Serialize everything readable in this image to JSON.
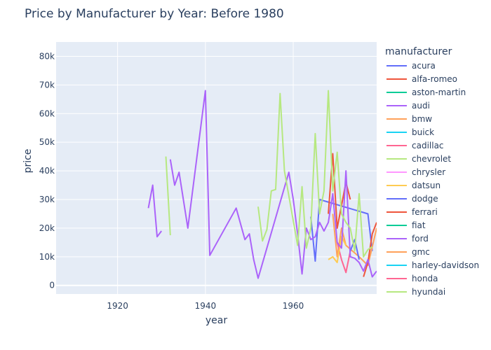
{
  "chart_data": {
    "type": "line",
    "title": "Price by Manufacturer by Year: Before 1980",
    "xlabel": "year",
    "ylabel": "price",
    "xlim": [
      1906,
      1979
    ],
    "ylim": [
      -3000,
      85000
    ],
    "x_ticks": [
      1920,
      1940,
      1960
    ],
    "y_ticks": [
      0,
      10000,
      20000,
      30000,
      40000,
      50000,
      60000,
      70000,
      80000
    ],
    "y_tick_labels": [
      "0",
      "10k",
      "20k",
      "30k",
      "40k",
      "50k",
      "60k",
      "70k",
      "80k"
    ],
    "legend_title": "manufacturer",
    "legend_position": "right",
    "grid": true,
    "series": [
      {
        "name": "acura",
        "color": "#636efa",
        "x": [
          1964,
          1965,
          1966,
          1977,
          1978
        ],
        "y": [
          24000,
          8500,
          30000,
          25000,
          12000
        ]
      },
      {
        "name": "alfa-romeo",
        "color": "#EF553B",
        "x": [
          1968,
          1969,
          1970,
          1972,
          1973
        ],
        "y": [
          25000,
          46000,
          20000,
          36000,
          30000
        ]
      },
      {
        "name": "aston-martin",
        "color": "#00cc96",
        "x": [],
        "y": []
      },
      {
        "name": "audi",
        "color": "#ab63fa",
        "x": [
          1927,
          1928,
          1929,
          1930
        ],
        "y": [
          27000,
          35000,
          17000,
          19000
        ]
      },
      {
        "name": "bmw",
        "color": "#FFA15A",
        "x": [
          1969,
          1970,
          1971,
          1972,
          1975,
          1977,
          1979
        ],
        "y": [
          25000,
          10000,
          20000,
          14000,
          10000,
          7000,
          20000
        ]
      },
      {
        "name": "buick",
        "color": "#19d3f3",
        "x": [],
        "y": []
      },
      {
        "name": "cadillac",
        "color": "#FF6692",
        "x": [
          1970,
          1971,
          1972,
          1973
        ],
        "y": [
          15000,
          9000,
          4500,
          12000
        ]
      },
      {
        "name": "chevrolet",
        "color": "#B6E880",
        "x": [
          1931,
          1932
        ],
        "y": [
          45000,
          17500
        ]
      },
      {
        "name": "chrysler",
        "color": "#FF97FF",
        "x": [],
        "y": []
      },
      {
        "name": "datsun",
        "color": "#FECB52",
        "x": [
          1968,
          1969,
          1970,
          1971,
          1972
        ],
        "y": [
          9000,
          10000,
          8000,
          17000,
          14000
        ]
      },
      {
        "name": "dodge",
        "color": "#636efa",
        "x": [
          1973,
          1974,
          1975
        ],
        "y": [
          12000,
          16000,
          9000
        ]
      },
      {
        "name": "ferrari",
        "color": "#EF553B",
        "x": [
          1976,
          1977,
          1978,
          1979
        ],
        "y": [
          3000,
          8000,
          18000,
          22000
        ]
      },
      {
        "name": "fiat",
        "color": "#00cc96",
        "x": [],
        "y": []
      },
      {
        "name": "ford",
        "color": "#ab63fa",
        "x": [
          1932,
          1933,
          1934,
          1936,
          1940,
          1941,
          1947,
          1949,
          1950,
          1951,
          1952,
          1959,
          1960,
          1961,
          1962,
          1963,
          1964,
          1965,
          1966,
          1967,
          1968,
          1969,
          1970,
          1971,
          1972,
          1973,
          1974,
          1975,
          1976,
          1977,
          1978,
          1979
        ],
        "y": [
          44000,
          35000,
          39500,
          20000,
          68000,
          10500,
          27000,
          16000,
          18000,
          9000,
          2500,
          39500,
          30000,
          18000,
          4000,
          20000,
          16000,
          17000,
          22000,
          19000,
          22000,
          32000,
          15000,
          13000,
          40000,
          10000,
          9500,
          8000,
          5000,
          9000,
          3000,
          5000
        ]
      },
      {
        "name": "gmc",
        "color": "#FFA15A",
        "x": [],
        "y": []
      },
      {
        "name": "harley-davidson",
        "color": "#19d3f3",
        "x": [],
        "y": []
      },
      {
        "name": "honda",
        "color": "#FF6692",
        "x": [],
        "y": []
      },
      {
        "name": "hyundai",
        "color": "#B6E880",
        "x": [
          1952,
          1953,
          1954,
          1955,
          1956,
          1957,
          1958,
          1961,
          1962,
          1963,
          1964,
          1965,
          1966,
          1967,
          1968,
          1969,
          1970,
          1971,
          1972,
          1973,
          1974,
          1975,
          1976,
          1977,
          1978
        ],
        "y": [
          27500,
          15500,
          19500,
          33000,
          33500,
          67000,
          40000,
          14000,
          34500,
          13000,
          20000,
          53000,
          25000,
          33000,
          68000,
          33000,
          46500,
          25000,
          22000,
          20000,
          12000,
          32000,
          10000,
          12500,
          13500
        ]
      }
    ]
  }
}
